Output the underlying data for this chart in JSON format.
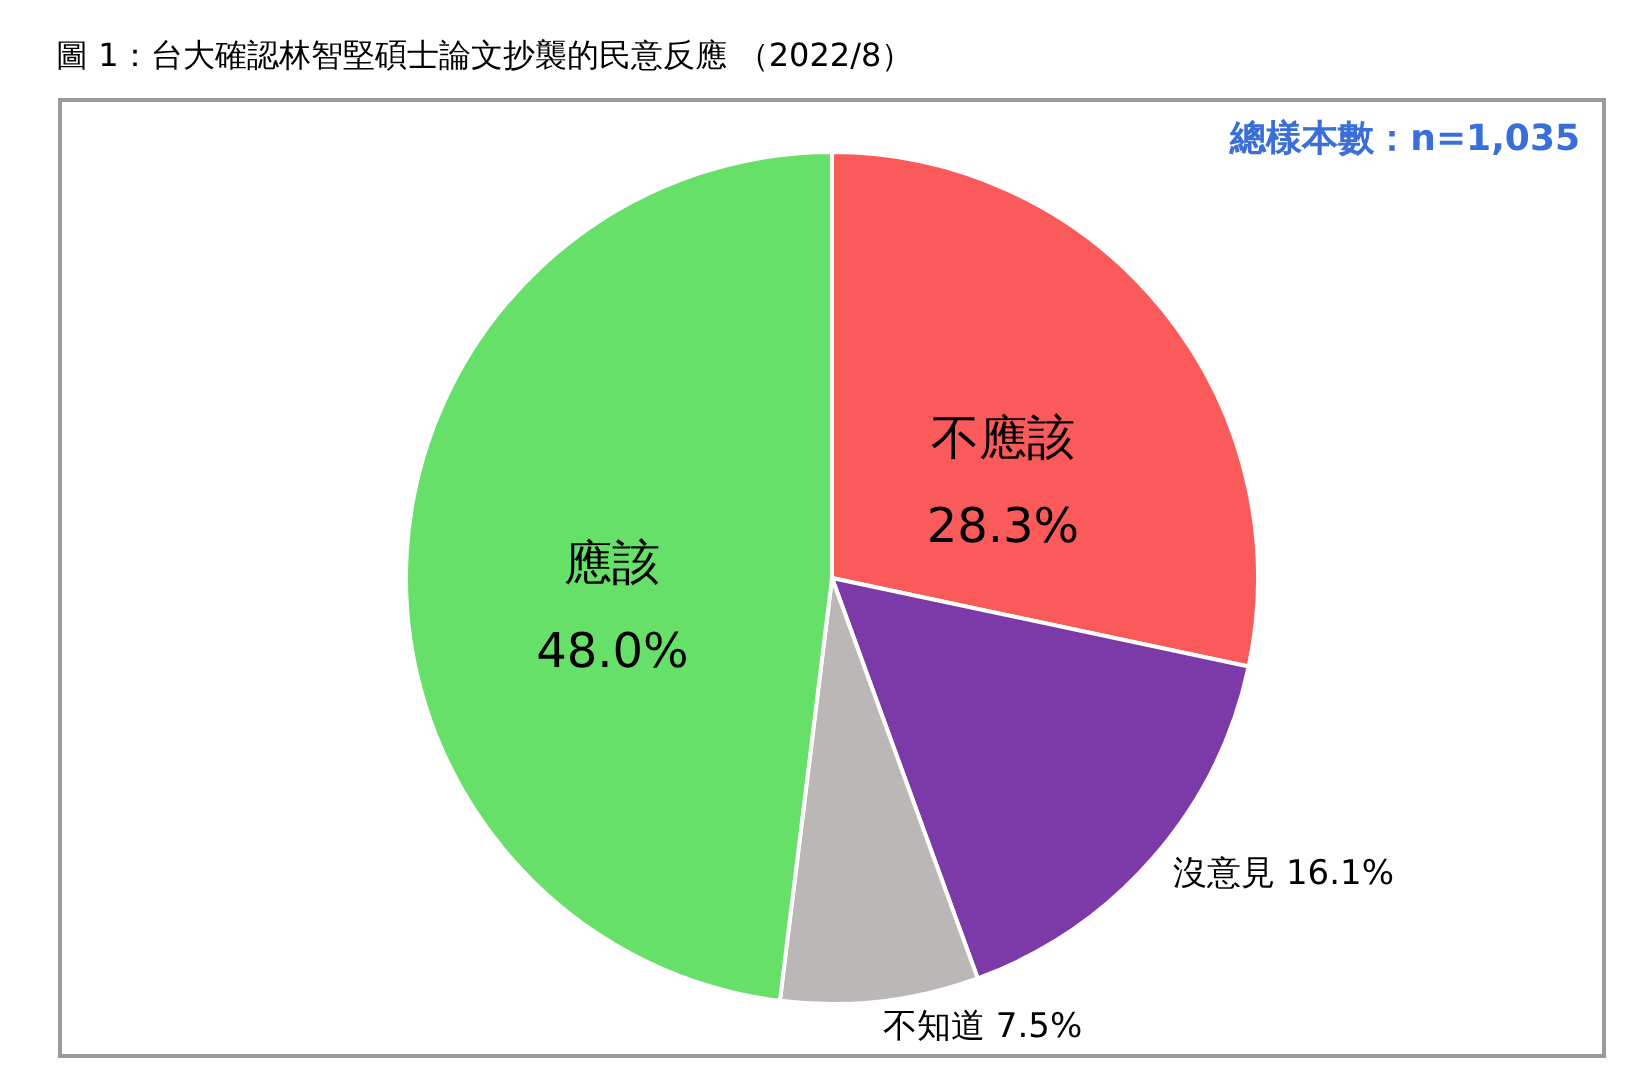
{
  "chart_data": {
    "type": "pie",
    "title": "圖 1：台大確認林智堅碩士論文抄襲的民意反應 （2022/8）",
    "categories": [
      "不應該",
      "沒意見",
      "不知道",
      "應該"
    ],
    "values": [
      28.3,
      16.1,
      7.5,
      48.0
    ],
    "value_labels": [
      "28.3%",
      "16.1%",
      "7.5%",
      "48.0%"
    ],
    "colors": [
      "#fb5a5a",
      "#7b3aa8",
      "#bcb7b7",
      "#66e068"
    ],
    "annotations": [
      "總樣本數：n=1,035"
    ]
  }
}
